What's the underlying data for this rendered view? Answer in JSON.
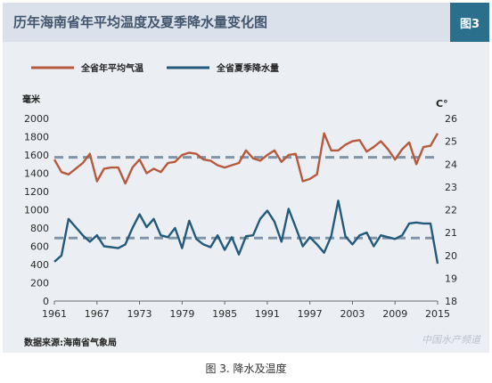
{
  "figure": {
    "title": "历年海南省年平均温度及夏季降水量变化图",
    "badge": "图3",
    "source": "数据来源:海南省气象局",
    "watermark": "中国水产频道",
    "caption": "图 3. 降水及温度"
  },
  "colors": {
    "temperature": "#b65a3e",
    "precipitation": "#235a7a",
    "average_line": "#8295a8",
    "axis_text": "#2a2a2a"
  },
  "chart_data": {
    "type": "line",
    "x": [
      1961,
      1962,
      1963,
      1964,
      1965,
      1966,
      1967,
      1968,
      1969,
      1970,
      1971,
      1972,
      1973,
      1974,
      1975,
      1976,
      1977,
      1978,
      1979,
      1980,
      1981,
      1982,
      1983,
      1984,
      1985,
      1986,
      1987,
      1988,
      1989,
      1990,
      1991,
      1992,
      1993,
      1994,
      1995,
      1996,
      1997,
      1998,
      1999,
      2000,
      2001,
      2002,
      2003,
      2004,
      2005,
      2006,
      2007,
      2008,
      2009,
      2010,
      2011,
      2012,
      2013,
      2014,
      2015
    ],
    "x_ticks": [
      1961,
      1967,
      1973,
      1979,
      1985,
      1991,
      1997,
      2003,
      2009,
      2015
    ],
    "y_left": {
      "label": "毫米",
      "ylim": [
        0,
        2000
      ],
      "ticks": [
        0,
        200,
        400,
        600,
        800,
        1000,
        1200,
        1400,
        1600,
        1800,
        2000
      ]
    },
    "y_right": {
      "label": "C°",
      "ylim": [
        18,
        26
      ],
      "ticks": [
        18,
        19,
        20,
        21,
        22,
        23,
        24,
        25,
        26
      ]
    },
    "series": [
      {
        "name": "全省年平均气温",
        "axis": "right",
        "values": [
          24.2,
          23.65,
          23.55,
          23.8,
          24.05,
          24.45,
          23.25,
          23.8,
          23.85,
          23.85,
          23.15,
          23.85,
          24.2,
          23.6,
          23.8,
          23.65,
          24.05,
          24.1,
          24.4,
          24.5,
          24.45,
          24.2,
          24.15,
          23.95,
          23.85,
          23.95,
          24.05,
          24.6,
          24.25,
          24.15,
          24.4,
          24.6,
          24.1,
          24.4,
          24.45,
          23.25,
          23.35,
          23.55,
          25.35,
          24.6,
          24.6,
          24.85,
          25.0,
          25.05,
          24.55,
          24.75,
          25.0,
          24.65,
          24.2,
          24.65,
          24.95,
          24.0,
          24.75,
          24.8,
          25.35
        ]
      },
      {
        "name": "全省夏季降水量",
        "axis": "left",
        "values": [
          430,
          500,
          900,
          810,
          720,
          650,
          720,
          600,
          590,
          580,
          620,
          800,
          950,
          810,
          900,
          720,
          700,
          800,
          580,
          880,
          680,
          620,
          590,
          720,
          560,
          700,
          510,
          710,
          720,
          900,
          990,
          870,
          650,
          1010,
          810,
          600,
          700,
          620,
          530,
          710,
          1100,
          710,
          620,
          720,
          750,
          600,
          720,
          700,
          680,
          720,
          850,
          860,
          850,
          850,
          410
        ]
      }
    ],
    "reference_lines": [
      {
        "axis": "right",
        "value": 24.3
      },
      {
        "axis": "left",
        "value": 690
      }
    ],
    "legend_position": "top",
    "grid": false
  }
}
